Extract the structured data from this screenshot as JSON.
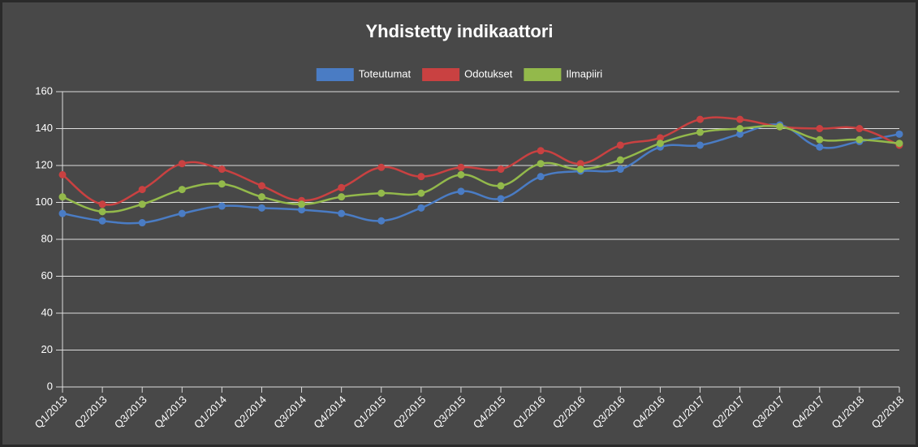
{
  "chart_data": {
    "type": "line",
    "title": "Yhdistetty indikaattori",
    "categories": [
      "Q1/2013",
      "Q2/2013",
      "Q3/2013",
      "Q4/2013",
      "Q1/2014",
      "Q2/2014",
      "Q3/2014",
      "Q4/2014",
      "Q1/2015",
      "Q2/2015",
      "Q3/2015",
      "Q4/2015",
      "Q1/2016",
      "Q2/2016",
      "Q3/2016",
      "Q4/2016",
      "Q1/2017",
      "Q2/2017",
      "Q3/2017",
      "Q4/2017",
      "Q1/2018",
      "Q2/2018"
    ],
    "series": [
      {
        "name": "Toteutumat",
        "color": "#4a7cc4",
        "values": [
          94,
          90,
          89,
          94,
          98,
          97,
          96,
          94,
          90,
          97,
          106,
          102,
          114,
          117,
          118,
          130,
          131,
          137,
          142,
          130,
          133,
          137
        ]
      },
      {
        "name": "Odotukset",
        "color": "#c94141",
        "values": [
          115,
          99,
          107,
          121,
          118,
          109,
          101,
          108,
          119,
          114,
          119,
          118,
          128,
          121,
          131,
          135,
          145,
          145,
          141,
          140,
          140,
          131
        ]
      },
      {
        "name": "Ilmapiiri",
        "color": "#93b94b",
        "values": [
          103,
          95,
          99,
          107,
          110,
          103,
          99,
          103,
          105,
          105,
          115,
          109,
          121,
          118,
          123,
          132,
          138,
          140,
          141,
          134,
          134,
          132
        ]
      }
    ],
    "ylim": [
      0,
      160
    ],
    "yticks": [
      0,
      20,
      40,
      60,
      80,
      100,
      120,
      140,
      160
    ],
    "grid": true,
    "legend": "top"
  }
}
